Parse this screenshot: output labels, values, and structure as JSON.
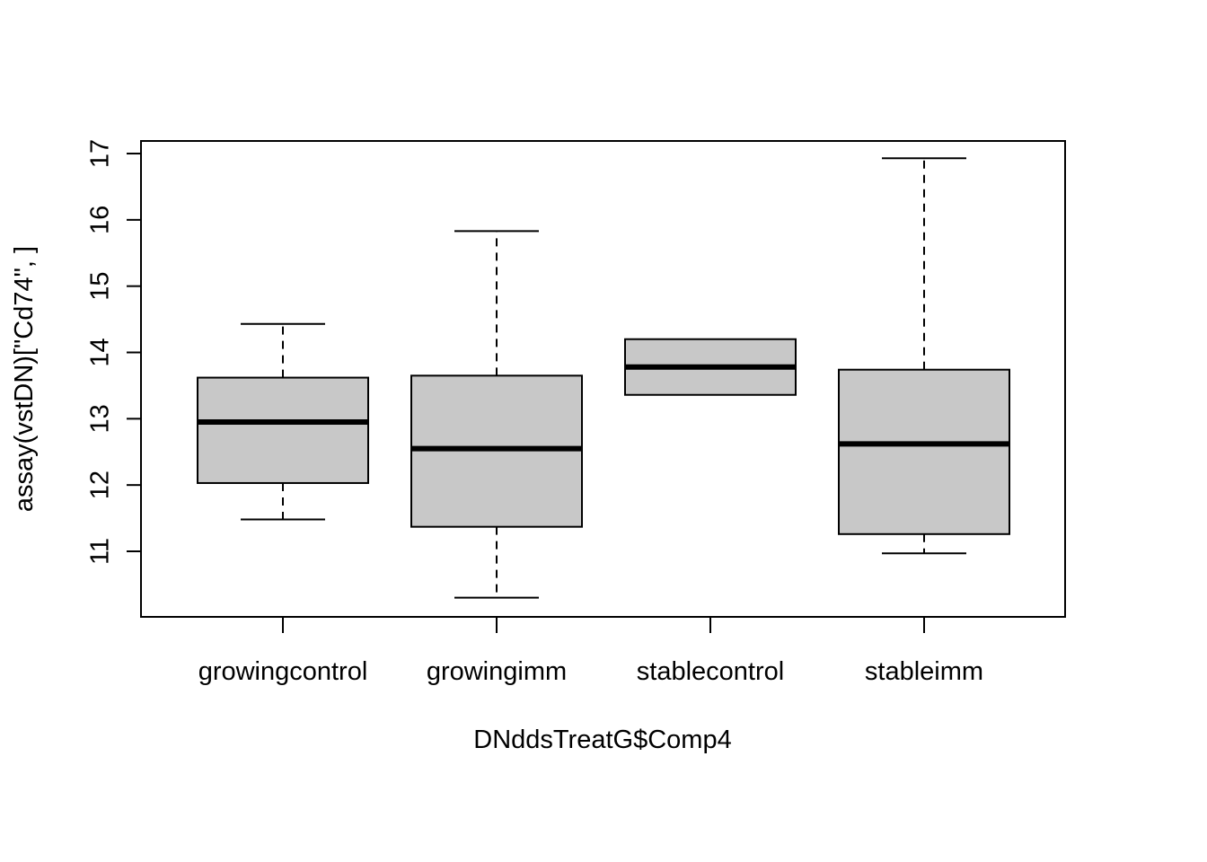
{
  "chart_data": {
    "type": "boxplot",
    "title": "",
    "xlabel": "DNddsTreatG$Comp4",
    "ylabel": "assay(vstDN)[\"Cd74\", ]",
    "ylim": [
      10.1,
      17.2
    ],
    "yticks": [
      "11",
      "12",
      "13",
      "14",
      "15",
      "16",
      "17"
    ],
    "categories": [
      "growingcontrol",
      "growingimm",
      "stablecontrol",
      "stableimm"
    ],
    "boxes": [
      {
        "category": "growingcontrol",
        "whisker_low": 11.48,
        "q1": 12.03,
        "median": 12.95,
        "q3": 13.62,
        "whisker_high": 14.43
      },
      {
        "category": "growingimm",
        "whisker_low": 10.3,
        "q1": 11.37,
        "median": 12.55,
        "q3": 13.65,
        "whisker_high": 15.83
      },
      {
        "category": "stablecontrol",
        "whisker_low": 13.36,
        "q1": 13.36,
        "median": 13.78,
        "q3": 14.2,
        "whisker_high": 14.2
      },
      {
        "category": "stableimm",
        "whisker_low": 10.97,
        "q1": 11.26,
        "median": 12.62,
        "q3": 13.74,
        "whisker_high": 16.93
      }
    ],
    "box_fill": "#c8c8c8",
    "line_color": "#000000",
    "grid": false,
    "legend": "none"
  }
}
